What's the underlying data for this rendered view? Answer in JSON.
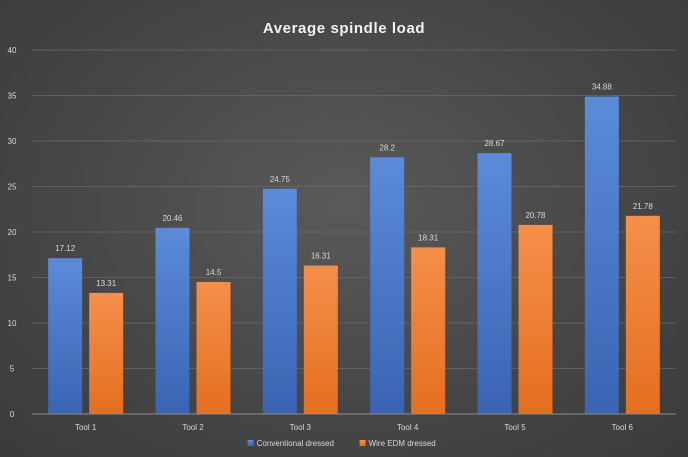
{
  "chart_data": {
    "type": "bar",
    "title": "Average spindle load",
    "categories": [
      "Tool 1",
      "Tool 2",
      "Tool 3",
      "Tool 4",
      "Tool 5",
      "Tool 6"
    ],
    "series": [
      {
        "name": "Conventional dressed",
        "color": "#4472c4",
        "values": [
          17.12,
          20.46,
          24.75,
          28.2,
          28.67,
          34.88
        ],
        "labels": [
          "17.12",
          "20.46",
          "24.75",
          "28.2",
          "28.67",
          "34.88"
        ]
      },
      {
        "name": "Wire EDM dressed",
        "color": "#ed7d31",
        "values": [
          13.31,
          14.5,
          16.31,
          18.31,
          20.78,
          21.78
        ],
        "labels": [
          "13.31",
          "14.5",
          "16.31",
          "18.31",
          "20.78",
          "21.78"
        ]
      }
    ],
    "ylim": [
      0,
      40
    ],
    "yticks": [
      "0",
      "5",
      "10",
      "15",
      "20",
      "25",
      "30",
      "35",
      "40"
    ],
    "grid": true,
    "legend": "bottom"
  }
}
